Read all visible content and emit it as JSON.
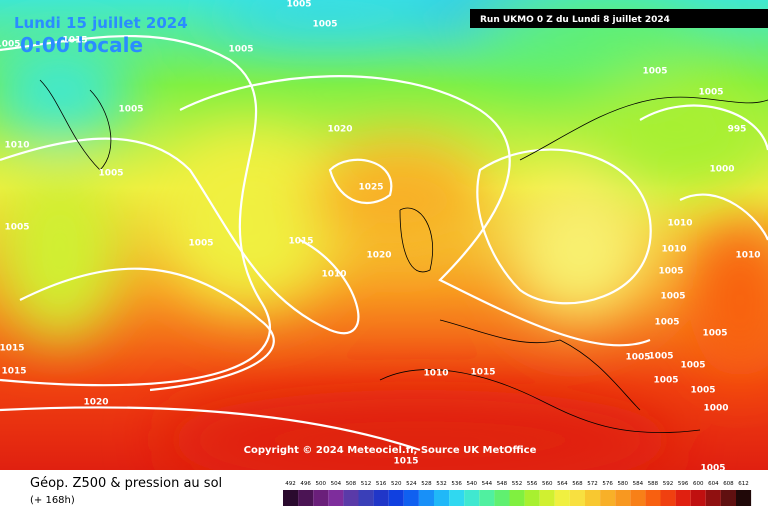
{
  "header": {
    "date": "Lundi 15 juillet 2024",
    "time": "0:00 locale"
  },
  "run_info": "Run UKMO 0 Z du Lundi 8 juillet 2024",
  "copyright": "Copyright © 2024 Meteociel.fr, Source UK MetOffice",
  "footer": {
    "title": "Géop. Z500 & pression au sol",
    "subtitle": "(+ 168h)"
  },
  "legend": {
    "values": [
      492,
      496,
      500,
      504,
      508,
      512,
      516,
      520,
      524,
      528,
      532,
      536,
      540,
      544,
      548,
      552,
      556,
      560,
      564,
      568,
      572,
      576,
      580,
      584,
      588,
      592,
      596,
      600,
      604,
      608,
      612
    ],
    "colors": [
      "#2a0a2e",
      "#4b1454",
      "#6a1f7a",
      "#7e2d9c",
      "#5a3aa8",
      "#3a3fb8",
      "#2036c8",
      "#1040e0",
      "#1060f0",
      "#1890f8",
      "#20b8f8",
      "#30d8f0",
      "#40e8d0",
      "#50f0a0",
      "#60f070",
      "#80f040",
      "#a8f030",
      "#d0f030",
      "#f0f040",
      "#f8e040",
      "#f8c830",
      "#f8b028",
      "#f89820",
      "#f88018",
      "#f86010",
      "#f04010",
      "#e02010",
      "#c01010",
      "#901010",
      "#601010",
      "#200808"
    ]
  },
  "isobar_labels": [
    "1005",
    "1005",
    "1005",
    "1015",
    "1005",
    "1005",
    "1005",
    "1005",
    "1020",
    "995",
    "1010",
    "1005",
    "1000",
    "1025",
    "1005",
    "1005",
    "1015",
    "1010",
    "1020",
    "1010",
    "1010",
    "1010",
    "1005",
    "1005",
    "1005",
    "1005",
    "1015",
    "1015",
    "1010",
    "1015",
    "1005",
    "1005",
    "1005",
    "1005",
    "1005",
    "1000",
    "1020",
    "1015",
    "1005"
  ]
}
